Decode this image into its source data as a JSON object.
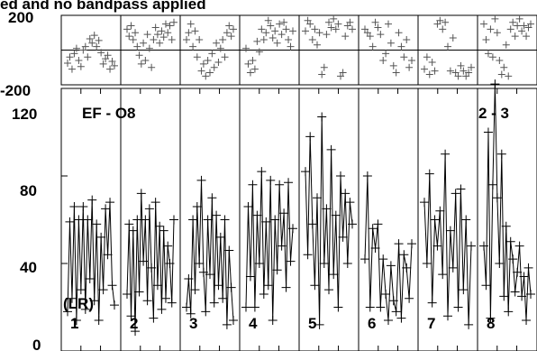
{
  "chart_data": {
    "type": "line",
    "title": "ed and no bandpass applied",
    "baseline_label": "EF - O8",
    "subplot_label": "2 - 3",
    "polarization_label": "(LR)",
    "phase_panel": {
      "ylim": [
        -200,
        200
      ],
      "y_tick_labels": [
        "200",
        "-200"
      ],
      "reference_lines": [
        0
      ]
    },
    "amplitude_panel": {
      "ylim": [
        0,
        120
      ],
      "y_tick_labels": [
        "120",
        "80",
        "40",
        "0"
      ],
      "y_ticks": [
        0,
        40,
        80,
        120
      ]
    },
    "panels": [
      {
        "label": "1",
        "amp": [
          18,
          59,
          24,
          66,
          14,
          60,
          28,
          66,
          19,
          60,
          33,
          69,
          23,
          58,
          14,
          52,
          28,
          65,
          44,
          68,
          30,
          21
        ],
        "phase": [
          -75,
          -40,
          -110,
          -20,
          10,
          -60,
          -95,
          0,
          20,
          -40,
          65,
          40,
          85,
          20,
          55,
          -15,
          -80,
          -50,
          -30,
          -110,
          -65,
          -90
        ]
      },
      {
        "label": "2",
        "amp": [
          26,
          58,
          16,
          55,
          9,
          60,
          27,
          72,
          41,
          60,
          23,
          65,
          38,
          15,
          68,
          30,
          57,
          19,
          55,
          24,
          48,
          40,
          22,
          60
        ],
        "phase": [
          120,
          80,
          140,
          60,
          100,
          20,
          -30,
          -80,
          40,
          -60,
          90,
          10,
          -100,
          60,
          130,
          90,
          40,
          110,
          75,
          150,
          100,
          140,
          60,
          160
        ]
      },
      {
        "label": "3",
        "amp": [
          20,
          33,
          17,
          60,
          28,
          66,
          40,
          78,
          36,
          18,
          60,
          35,
          70,
          22,
          62,
          30,
          52,
          24,
          60,
          12,
          46,
          29,
          14
        ],
        "phase": [
          60,
          100,
          150,
          20,
          110,
          -40,
          60,
          -120,
          -80,
          -150,
          -60,
          -130,
          -20,
          -100,
          40,
          -70,
          10,
          60,
          -40,
          100,
          140,
          80,
          120
        ]
      },
      {
        "label": "4",
        "amp": [
          20,
          66,
          34,
          76,
          20,
          62,
          40,
          82,
          26,
          59,
          30,
          78,
          14,
          60,
          37,
          76,
          48,
          63,
          29,
          77,
          41,
          56
        ],
        "phase": [
          10,
          -80,
          -130,
          -60,
          -110,
          50,
          -10,
          120,
          60,
          100,
          170,
          140,
          70,
          110,
          40,
          150,
          90,
          160,
          120,
          60,
          20,
          110
        ]
      },
      {
        "label": "5",
        "amp": [
          82,
          44,
          98,
          58,
          30,
          70,
          12,
          107,
          40,
          65,
          28,
          92,
          35,
          62,
          20,
          80,
          52,
          72,
          40,
          68,
          58
        ],
        "phase": [
          110,
          170,
          150,
          60,
          120,
          30,
          100,
          -140,
          -100,
          90,
          160,
          130,
          180,
          120,
          150,
          -150,
          -130,
          80,
          140,
          160,
          120
        ]
      },
      {
        "label": "6",
        "amp": [
          42,
          80,
          20,
          56,
          47,
          58,
          20,
          42,
          26,
          14,
          39,
          23,
          18,
          49,
          15,
          44,
          38,
          24,
          49
        ],
        "phase": [
          120,
          100,
          80,
          20,
          160,
          130,
          90,
          -60,
          -20,
          150,
          40,
          -90,
          -130,
          100,
          20,
          -40,
          60,
          -100,
          -60
        ]
      },
      {
        "label": "7",
        "amp": [
          68,
          40,
          81,
          22,
          60,
          48,
          64,
          35,
          90,
          16,
          55,
          38,
          72,
          20,
          74,
          28,
          60,
          12,
          48
        ],
        "phase": [
          -110,
          -40,
          -140,
          -70,
          -120,
          150,
          170,
          120,
          160,
          20,
          -120,
          70,
          -130,
          -150,
          -90,
          -120,
          -150,
          -130,
          -100
        ]
      },
      {
        "label": "8",
        "amp": [
          48,
          30,
          100,
          15,
          76,
          122,
          70,
          40,
          90,
          25,
          57,
          18,
          50,
          42,
          27,
          36,
          48,
          25,
          34,
          14,
          38,
          26
        ],
        "phase": [
          150,
          60,
          -20,
          120,
          -40,
          180,
          100,
          -60,
          -140,
          -100,
          30,
          -150,
          120,
          160,
          80,
          140,
          180,
          110,
          140,
          80,
          130,
          150
        ]
      }
    ]
  }
}
